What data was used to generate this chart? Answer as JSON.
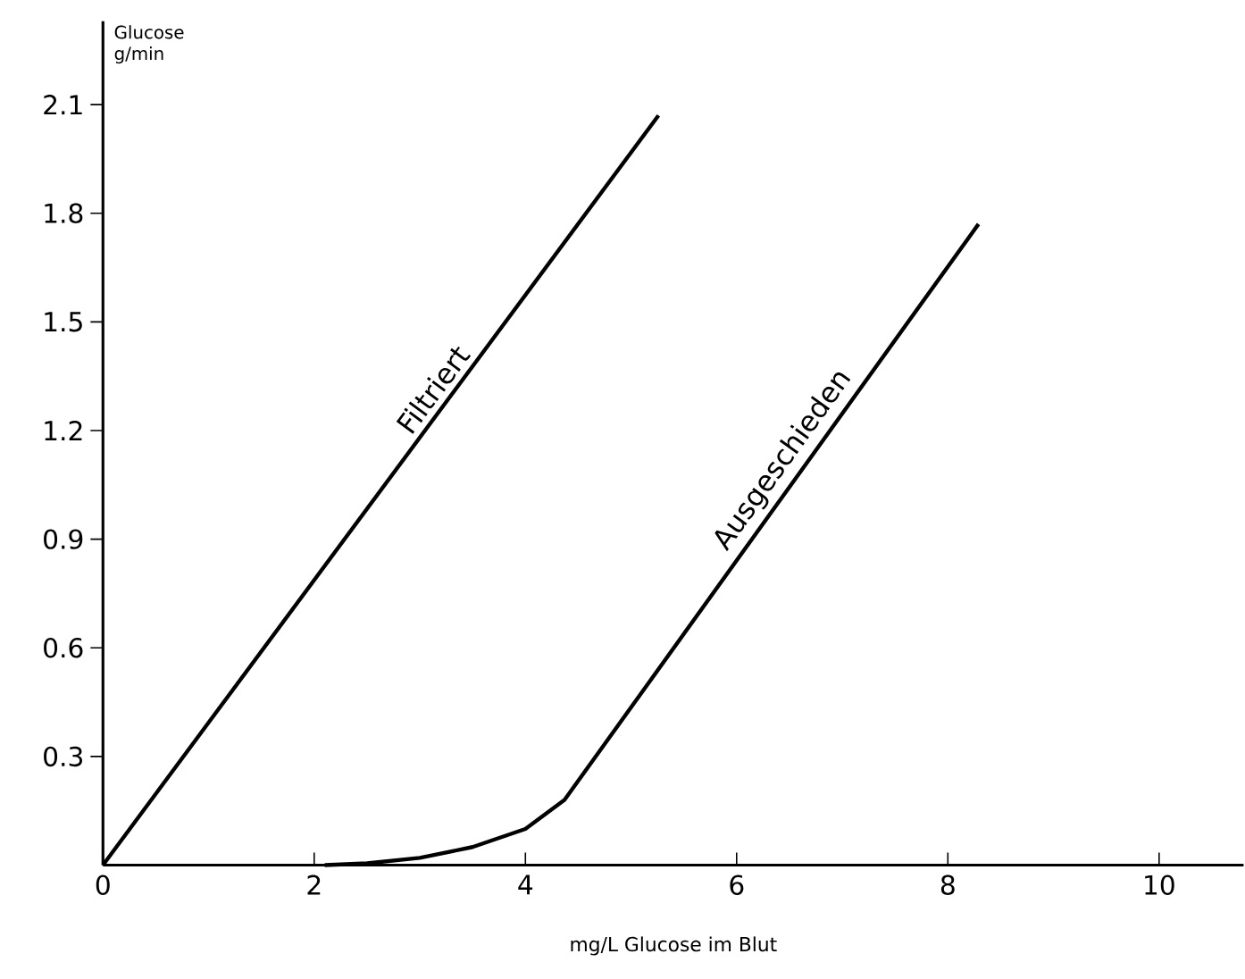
{
  "chart_data": {
    "type": "line",
    "ylabel": "Glucose g/min",
    "xlabel": "mg/L Glucose im Blut",
    "xlim": [
      0,
      10.8
    ],
    "ylim": [
      0,
      2.33
    ],
    "xticks": [
      0,
      2,
      4,
      6,
      8,
      10
    ],
    "yticks": [
      0.3,
      0.6,
      0.9,
      1.2,
      1.5,
      1.8,
      2.1
    ],
    "tick_labels": "xy",
    "grid": false,
    "legend": false,
    "marker": "none",
    "line_style": "solid",
    "series": [
      {
        "name": "Filtriert",
        "color": "#000000",
        "x": [
          0,
          5.26
        ],
        "values": [
          0,
          2.07
        ]
      },
      {
        "name": "Ausgeschieden",
        "color": "#000000",
        "x": [
          2.1,
          2.5,
          3.0,
          3.5,
          4.0,
          4.37,
          8.29
        ],
        "values": [
          0,
          0.005,
          0.02,
          0.05,
          0.1,
          0.18,
          1.77
        ]
      }
    ]
  }
}
